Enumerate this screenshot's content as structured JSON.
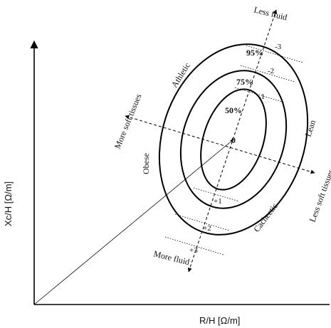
{
  "axes": {
    "x_label": "R/H [Ω/m]",
    "y_label": "Xc/H [Ω/m]"
  },
  "ellipses": {
    "p95": "95%",
    "p75": "75%",
    "p50": "50%"
  },
  "major_axis": {
    "top": "Less fluid",
    "bottom": "More fluid"
  },
  "minor_axis": {
    "left": "More soft tissues",
    "right": "Less soft tissues"
  },
  "body_types": {
    "athletic": "Athletic",
    "lean": "Lean",
    "obese": "Obese",
    "cachectic": "Cachectic"
  },
  "center_label": "0",
  "ticks_negative": [
    "-3",
    "-2",
    "-1"
  ],
  "ticks_positive": [
    "+1",
    "+2",
    "+3"
  ]
}
